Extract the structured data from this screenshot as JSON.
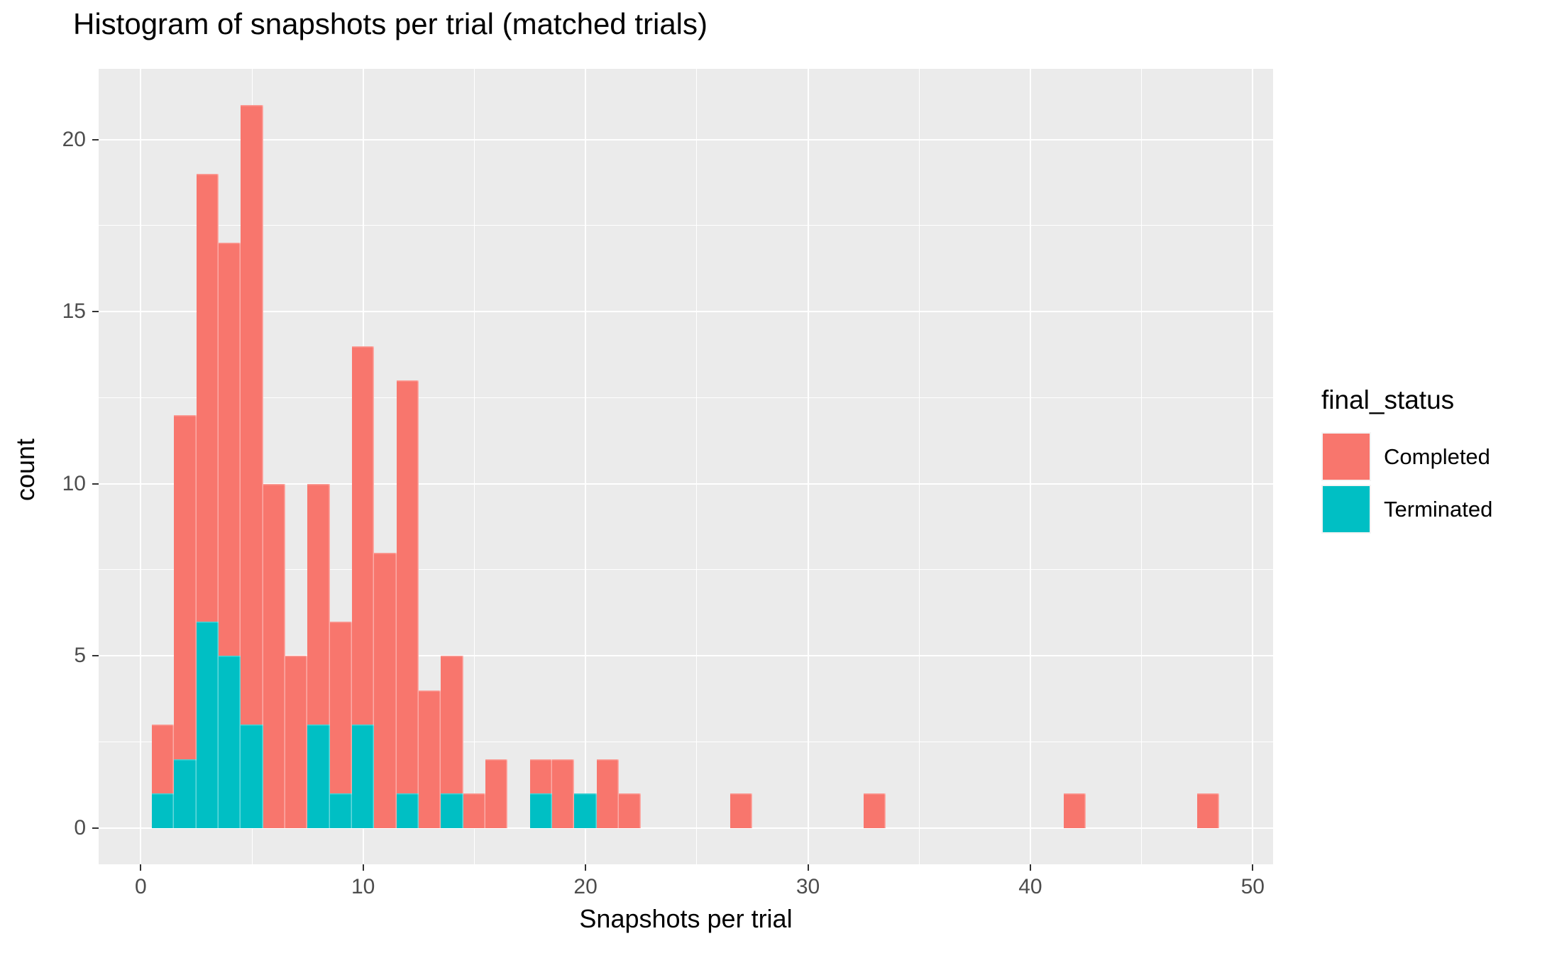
{
  "title": "Histogram of snapshots per trial (matched trials)",
  "axes": {
    "x": {
      "label": "Snapshots per trial",
      "tick_labels": [
        "0",
        "10",
        "20",
        "30",
        "40",
        "50"
      ],
      "tick_values": [
        0,
        10,
        20,
        30,
        40,
        50
      ],
      "minor_values": [
        5,
        15,
        25,
        35,
        45
      ]
    },
    "y": {
      "label": "count",
      "tick_labels": [
        "0",
        "5",
        "10",
        "15",
        "20"
      ],
      "tick_values": [
        0,
        5,
        10,
        15,
        20
      ],
      "minor_values": [
        2.5,
        7.5,
        12.5,
        17.5
      ]
    }
  },
  "legend": {
    "title": "final_status",
    "items": [
      {
        "label": "Completed",
        "color": "#F8766D"
      },
      {
        "label": "Terminated",
        "color": "#00BFC4"
      }
    ]
  },
  "style_colors": {
    "panel_background": "#EBEBEB",
    "gridline": "#FFFFFF",
    "tick_label": "#4D4D4D",
    "tick_mark": "#333333",
    "completed": "#F8766D",
    "terminated": "#00BFC4"
  },
  "chart_data": {
    "type": "bar",
    "subtype": "stacked_histogram",
    "title": "Histogram of snapshots per trial (matched trials)",
    "xlabel": "Snapshots per trial",
    "ylabel": "count",
    "xlim": [
      -2,
      51
    ],
    "ylim": [
      0,
      21
    ],
    "binwidth": 1,
    "legend_position": "right",
    "grid": true,
    "categories": [
      1,
      2,
      3,
      4,
      5,
      6,
      7,
      8,
      9,
      10,
      11,
      12,
      13,
      14,
      15,
      16,
      18,
      19,
      20,
      21,
      22,
      27,
      33,
      42,
      48
    ],
    "series": [
      {
        "name": "Terminated",
        "color": "#00BFC4",
        "values": [
          1,
          2,
          6,
          5,
          3,
          0,
          0,
          3,
          1,
          3,
          0,
          1,
          0,
          1,
          0,
          0,
          1,
          0,
          1,
          0,
          0,
          0,
          0,
          0,
          0
        ]
      },
      {
        "name": "Completed",
        "color": "#F8766D",
        "values": [
          2,
          10,
          13,
          12,
          18,
          10,
          5,
          7,
          5,
          11,
          8,
          12,
          4,
          4,
          1,
          2,
          1,
          2,
          0,
          2,
          1,
          1,
          1,
          1,
          1
        ]
      }
    ],
    "bins": [
      {
        "x": 1,
        "terminated": 1,
        "completed": 2,
        "total": 3
      },
      {
        "x": 2,
        "terminated": 2,
        "completed": 10,
        "total": 12
      },
      {
        "x": 3,
        "terminated": 6,
        "completed": 13,
        "total": 19
      },
      {
        "x": 4,
        "terminated": 5,
        "completed": 12,
        "total": 17
      },
      {
        "x": 5,
        "terminated": 3,
        "completed": 18,
        "total": 21
      },
      {
        "x": 6,
        "terminated": 0,
        "completed": 10,
        "total": 10
      },
      {
        "x": 7,
        "terminated": 0,
        "completed": 5,
        "total": 5
      },
      {
        "x": 8,
        "terminated": 3,
        "completed": 7,
        "total": 10
      },
      {
        "x": 9,
        "terminated": 1,
        "completed": 5,
        "total": 6
      },
      {
        "x": 10,
        "terminated": 3,
        "completed": 11,
        "total": 14
      },
      {
        "x": 11,
        "terminated": 0,
        "completed": 8,
        "total": 8
      },
      {
        "x": 12,
        "terminated": 1,
        "completed": 12,
        "total": 13
      },
      {
        "x": 13,
        "terminated": 0,
        "completed": 4,
        "total": 4
      },
      {
        "x": 14,
        "terminated": 1,
        "completed": 4,
        "total": 5
      },
      {
        "x": 15,
        "terminated": 0,
        "completed": 1,
        "total": 1
      },
      {
        "x": 16,
        "terminated": 0,
        "completed": 2,
        "total": 2
      },
      {
        "x": 18,
        "terminated": 1,
        "completed": 1,
        "total": 2
      },
      {
        "x": 19,
        "terminated": 0,
        "completed": 2,
        "total": 2
      },
      {
        "x": 20,
        "terminated": 1,
        "completed": 0,
        "total": 1
      },
      {
        "x": 21,
        "terminated": 0,
        "completed": 2,
        "total": 2
      },
      {
        "x": 22,
        "terminated": 0,
        "completed": 1,
        "total": 1
      },
      {
        "x": 27,
        "terminated": 0,
        "completed": 1,
        "total": 1
      },
      {
        "x": 33,
        "terminated": 0,
        "completed": 1,
        "total": 1
      },
      {
        "x": 42,
        "terminated": 0,
        "completed": 1,
        "total": 1
      },
      {
        "x": 48,
        "terminated": 0,
        "completed": 1,
        "total": 1
      }
    ]
  }
}
